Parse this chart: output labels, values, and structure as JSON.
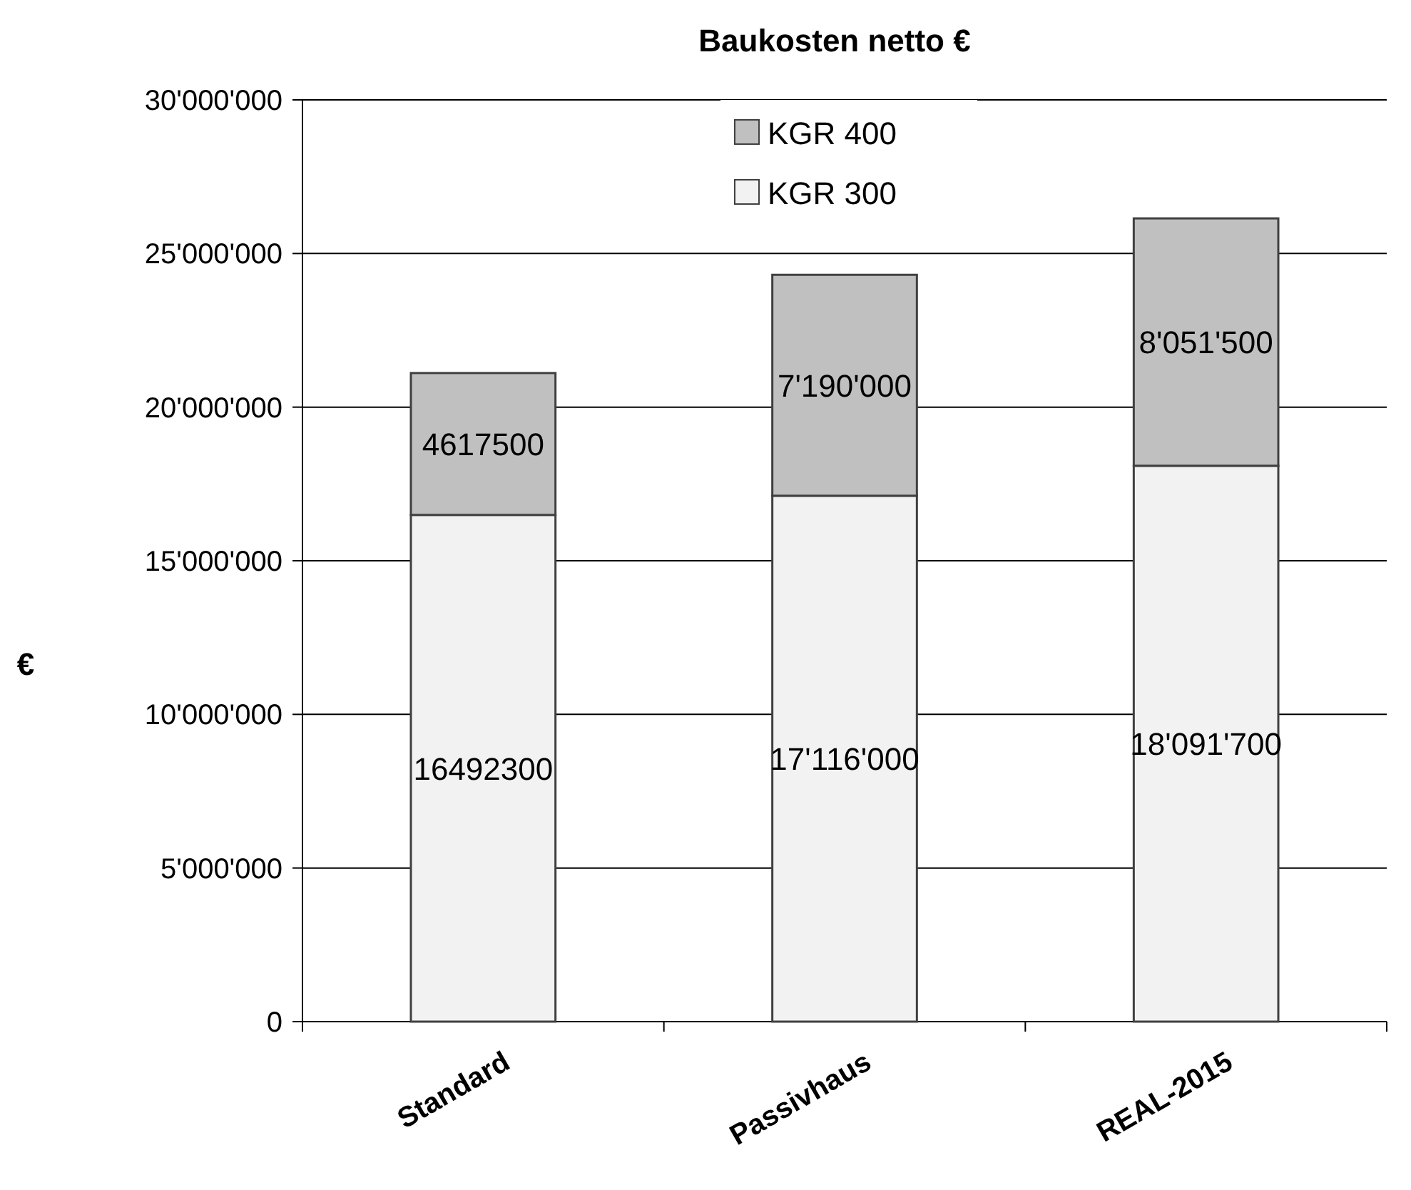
{
  "chart_data": {
    "type": "bar",
    "title": "Baukosten netto €",
    "ylabel": "€",
    "categories": [
      "Standard",
      "Passivhaus",
      "REAL-2015"
    ],
    "stacked": true,
    "series": [
      {
        "name": "KGR 300",
        "color": "#f2f2f2",
        "values": [
          16492300,
          17116000,
          18091700
        ],
        "value_labels": [
          "16492300",
          "17'116'000",
          "18'091'700"
        ]
      },
      {
        "name": "KGR 400",
        "color": "#c0c0c0",
        "values": [
          4617500,
          7190000,
          8051500
        ],
        "value_labels": [
          "4617500",
          "7'190'000",
          "8'051'500"
        ]
      }
    ],
    "ylim": [
      0,
      30000000
    ],
    "yticks": [
      {
        "value": 0,
        "label": "0"
      },
      {
        "value": 5000000,
        "label": "5'000'000"
      },
      {
        "value": 10000000,
        "label": "10'000'000"
      },
      {
        "value": 15000000,
        "label": "15'000'000"
      },
      {
        "value": 20000000,
        "label": "20'000'000"
      },
      {
        "value": 25000000,
        "label": "25'000'000"
      },
      {
        "value": 30000000,
        "label": "30'000'000"
      }
    ],
    "grid": "y",
    "legend": "top"
  }
}
